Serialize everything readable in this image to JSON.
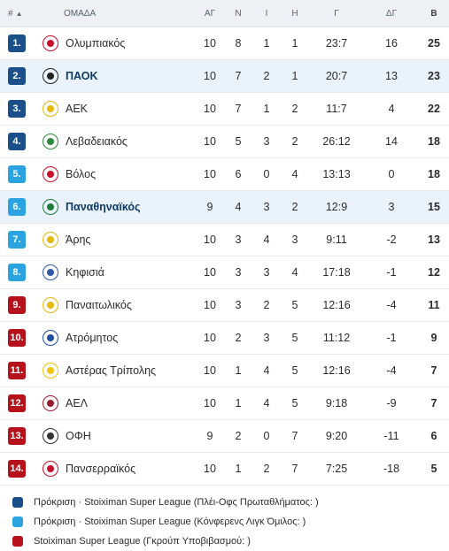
{
  "header": {
    "pos": "#",
    "team": "ΟΜΑΔΑ",
    "played": "ΑΓ",
    "won": "Ν",
    "drawn": "Ι",
    "lost": "Η",
    "goals": "Γ",
    "goal_diff": "ΔΓ",
    "points": "Β"
  },
  "colors": {
    "championship": "#1b4f8a",
    "conference": "#2aa3e0",
    "relegation": "#b5121b"
  },
  "rows": [
    {
      "pos": "1.",
      "team": "Ολυμπιακός",
      "played": "10",
      "won": "8",
      "drawn": "1",
      "lost": "1",
      "goals": "23:7",
      "gd": "16",
      "pts": "25",
      "zone": "championship",
      "logo_icon": "olympiacos-logo-icon",
      "logo": "#c8102e"
    },
    {
      "pos": "2.",
      "team": "ΠΑΟΚ",
      "played": "10",
      "won": "7",
      "drawn": "2",
      "lost": "1",
      "goals": "20:7",
      "gd": "13",
      "pts": "23",
      "zone": "championship",
      "logo_icon": "paok-logo-icon",
      "logo": "#222222",
      "highlight": true
    },
    {
      "pos": "3.",
      "team": "ΑΕΚ",
      "played": "10",
      "won": "7",
      "drawn": "1",
      "lost": "2",
      "goals": "11:7",
      "gd": "4",
      "pts": "22",
      "zone": "championship",
      "logo_icon": "aek-logo-icon",
      "logo": "#e5b80b"
    },
    {
      "pos": "4.",
      "team": "Λεβαδειακός",
      "played": "10",
      "won": "5",
      "drawn": "3",
      "lost": "2",
      "goals": "26:12",
      "gd": "14",
      "pts": "18",
      "zone": "championship",
      "logo_icon": "levadiakos-logo-icon",
      "logo": "#2e8b3e"
    },
    {
      "pos": "5.",
      "team": "Βόλος",
      "played": "10",
      "won": "6",
      "drawn": "0",
      "lost": "4",
      "goals": "13:13",
      "gd": "0",
      "pts": "18",
      "zone": "conference",
      "logo_icon": "volos-logo-icon",
      "logo": "#c8102e"
    },
    {
      "pos": "6.",
      "team": "Παναθηναϊκός",
      "played": "9",
      "won": "4",
      "drawn": "3",
      "lost": "2",
      "goals": "12:9",
      "gd": "3",
      "pts": "15",
      "zone": "conference",
      "logo_icon": "panathinaikos-logo-icon",
      "logo": "#1e7d3a",
      "highlight": true
    },
    {
      "pos": "7.",
      "team": "Άρης",
      "played": "10",
      "won": "3",
      "drawn": "4",
      "lost": "3",
      "goals": "9:11",
      "gd": "-2",
      "pts": "13",
      "zone": "conference",
      "logo_icon": "aris-logo-icon",
      "logo": "#e5b80b"
    },
    {
      "pos": "8.",
      "team": "Κηφισιά",
      "played": "10",
      "won": "3",
      "drawn": "3",
      "lost": "4",
      "goals": "17:18",
      "gd": "-1",
      "pts": "12",
      "zone": "conference",
      "logo_icon": "kifisia-logo-icon",
      "logo": "#2f56a8"
    },
    {
      "pos": "9.",
      "team": "Παναιτωλικός",
      "played": "10",
      "won": "3",
      "drawn": "2",
      "lost": "5",
      "goals": "12:16",
      "gd": "-4",
      "pts": "11",
      "zone": "relegation",
      "logo_icon": "panetolikos-logo-icon",
      "logo": "#e5b80b"
    },
    {
      "pos": "10.",
      "team": "Ατρόμητος",
      "played": "10",
      "won": "2",
      "drawn": "3",
      "lost": "5",
      "goals": "11:12",
      "gd": "-1",
      "pts": "9",
      "zone": "relegation",
      "logo_icon": "atromitos-logo-icon",
      "logo": "#1f4fa0"
    },
    {
      "pos": "11.",
      "team": "Αστέρας Τρίπολης",
      "played": "10",
      "won": "1",
      "drawn": "4",
      "lost": "5",
      "goals": "12:16",
      "gd": "-4",
      "pts": "7",
      "zone": "relegation",
      "logo_icon": "asteras-logo-icon",
      "logo": "#f1c40f"
    },
    {
      "pos": "12.",
      "team": "ΑΕΛ",
      "played": "10",
      "won": "1",
      "drawn": "4",
      "lost": "5",
      "goals": "9:18",
      "gd": "-9",
      "pts": "7",
      "zone": "relegation",
      "logo_icon": "ael-logo-icon",
      "logo": "#9a1b2e"
    },
    {
      "pos": "13.",
      "team": "ΟΦΗ",
      "played": "9",
      "won": "2",
      "drawn": "0",
      "lost": "7",
      "goals": "9:20",
      "gd": "-11",
      "pts": "6",
      "zone": "relegation",
      "logo_icon": "ofi-logo-icon",
      "logo": "#333333"
    },
    {
      "pos": "14.",
      "team": "Πανσερραϊκός",
      "played": "10",
      "won": "1",
      "drawn": "2",
      "lost": "7",
      "goals": "7:25",
      "gd": "-18",
      "pts": "5",
      "zone": "relegation",
      "logo_icon": "panserraikos-logo-icon",
      "logo": "#c8102e"
    }
  ],
  "legend": [
    {
      "zone": "championship",
      "label": "Πρόκριση · Stoiximan Super League (Πλέι-Οφς Πρωταθλήματος: )"
    },
    {
      "zone": "conference",
      "label": "Πρόκριση · Stoiximan Super League (Κόνφερενς Λιγκ Όμιλος: )"
    },
    {
      "zone": "relegation",
      "label": "Stoiximan Super League (Γκρούπ Υποβιβασμού: )"
    }
  ]
}
